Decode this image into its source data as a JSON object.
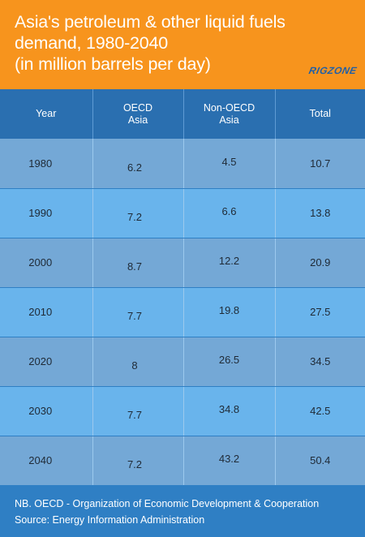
{
  "header": {
    "title_lines": [
      "Asia's petroleum & other liquid fuels",
      "demand, 1980-2040",
      "(in million barrels per day)"
    ],
    "logo": "RIGZONE"
  },
  "table": {
    "headers": [
      "Year",
      "OECD Asia",
      "Non-OECD Asia",
      "Total"
    ],
    "rows": [
      [
        "1980",
        "6.2",
        "4.5",
        "10.7"
      ],
      [
        "1990",
        "7.2",
        "6.6",
        "13.8"
      ],
      [
        "2000",
        "8.7",
        "12.2",
        "20.9"
      ],
      [
        "2010",
        "7.7",
        "19.8",
        "27.5"
      ],
      [
        "2020",
        "8",
        "26.5",
        "34.5"
      ],
      [
        "2030",
        "7.7",
        "34.8",
        "42.5"
      ],
      [
        "2040",
        "7.2",
        "43.2",
        "50.4"
      ]
    ]
  },
  "footer": {
    "note": "NB. OECD - Organization of Economic Development & Cooperation",
    "source": "Source: Energy Information Administration"
  },
  "colors": {
    "header_bg": "#f7941d",
    "table_header_bg": "#2a6fb0",
    "row_odd_bg": "#74a8d6",
    "row_even_bg": "#69b4ec",
    "footer_bg": "#2f7fc4",
    "logo": "#1f5fa8"
  },
  "chart_data": {
    "type": "table",
    "title": "Asia's petroleum & other liquid fuels demand, 1980-2040 (in million barrels per day)",
    "columns": [
      "Year",
      "OECD Asia",
      "Non-OECD Asia",
      "Total"
    ],
    "categories": [
      "1980",
      "1990",
      "2000",
      "2010",
      "2020",
      "2030",
      "2040"
    ],
    "series": [
      {
        "name": "OECD Asia",
        "values": [
          6.2,
          7.2,
          8.7,
          7.7,
          8,
          7.7,
          7.2
        ]
      },
      {
        "name": "Non-OECD Asia",
        "values": [
          4.5,
          6.6,
          12.2,
          19.8,
          26.5,
          34.8,
          43.2
        ]
      },
      {
        "name": "Total",
        "values": [
          10.7,
          13.8,
          20.9,
          27.5,
          34.5,
          42.5,
          50.4
        ]
      }
    ]
  }
}
